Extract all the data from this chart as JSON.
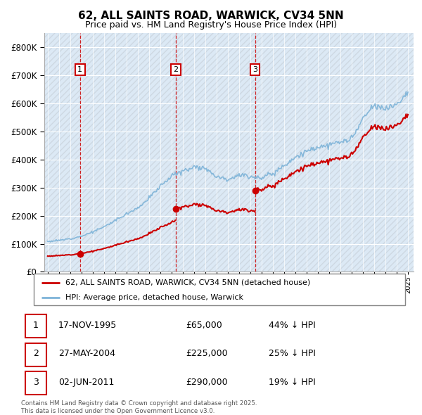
{
  "title": "62, ALL SAINTS ROAD, WARWICK, CV34 5NN",
  "subtitle": "Price paid vs. HM Land Registry's House Price Index (HPI)",
  "legend_entries": [
    "62, ALL SAINTS ROAD, WARWICK, CV34 5NN (detached house)",
    "HPI: Average price, detached house, Warwick"
  ],
  "transactions": [
    {
      "num": 1,
      "date": "17-NOV-1995",
      "price": "£65,000",
      "note": "44% ↓ HPI"
    },
    {
      "num": 2,
      "date": "27-MAY-2004",
      "price": "£225,000",
      "note": "25% ↓ HPI"
    },
    {
      "num": 3,
      "date": "02-JUN-2011",
      "price": "£290,000",
      "note": "19% ↓ HPI"
    }
  ],
  "footer": "Contains HM Land Registry data © Crown copyright and database right 2025.\nThis data is licensed under the Open Government Licence v3.0.",
  "red_color": "#cc0000",
  "blue_color": "#7db3d8",
  "background_color": "#ffffff",
  "plot_bg": "#dce9f5",
  "ylim": [
    0,
    850000
  ],
  "xlim_start": 1992.7,
  "xlim_end": 2025.5,
  "sale_dates": [
    1995.875,
    2004.375,
    2011.417
  ],
  "sale_prices": [
    65000,
    225000,
    290000
  ]
}
